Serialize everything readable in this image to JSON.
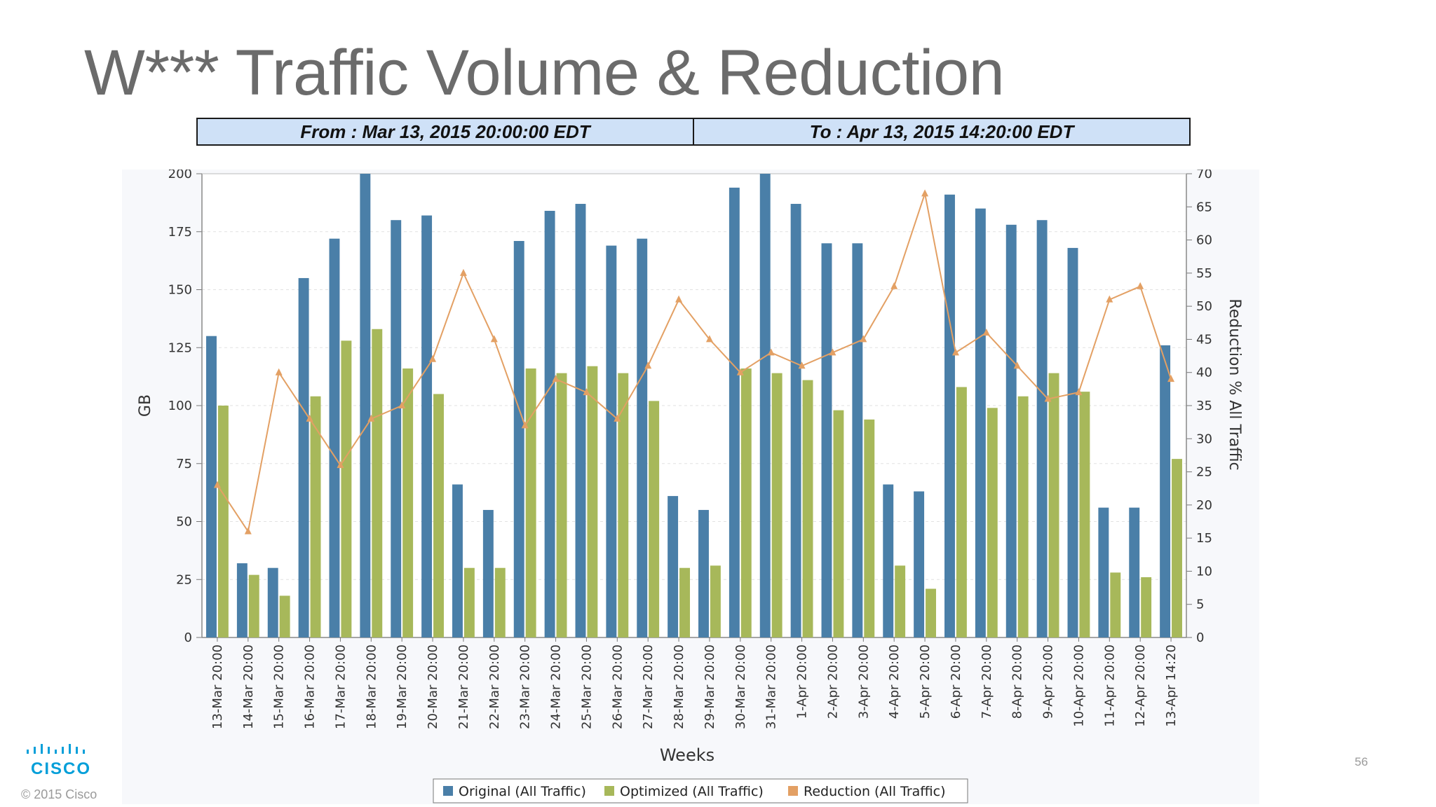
{
  "slide": {
    "title": "W*** Traffic Volume & Reduction",
    "from_label": "From  :  Mar 13, 2015 20:00:00 EDT",
    "to_label": "To  :  Apr 13, 2015 14:20:00 EDT",
    "copyright": "© 2015  Cisco",
    "page_number": "56",
    "logo_text": "CISCO"
  },
  "chart_data": {
    "type": "bar",
    "title": "",
    "xlabel": "Weeks",
    "ylabel": "GB",
    "y2label": "Reduction % All Traffic",
    "ylim": [
      0,
      200
    ],
    "y2lim": [
      0,
      70
    ],
    "yticks": [
      0,
      25,
      50,
      75,
      100,
      125,
      150,
      175,
      200
    ],
    "y2ticks": [
      0,
      5,
      10,
      15,
      20,
      25,
      30,
      35,
      40,
      45,
      50,
      55,
      60,
      65,
      70
    ],
    "grid": true,
    "legend_position": "bottom",
    "categories": [
      "13-Mar 20:00",
      "14-Mar 20:00",
      "15-Mar 20:00",
      "16-Mar 20:00",
      "17-Mar 20:00",
      "18-Mar 20:00",
      "19-Mar 20:00",
      "20-Mar 20:00",
      "21-Mar 20:00",
      "22-Mar 20:00",
      "23-Mar 20:00",
      "24-Mar 20:00",
      "25-Mar 20:00",
      "26-Mar 20:00",
      "27-Mar 20:00",
      "28-Mar 20:00",
      "29-Mar 20:00",
      "30-Mar 20:00",
      "31-Mar 20:00",
      "1-Apr 20:00",
      "2-Apr 20:00",
      "3-Apr 20:00",
      "4-Apr 20:00",
      "5-Apr 20:00",
      "6-Apr 20:00",
      "7-Apr 20:00",
      "8-Apr 20:00",
      "9-Apr 20:00",
      "10-Apr 20:00",
      "11-Apr 20:00",
      "12-Apr 20:00",
      "13-Apr 14:20"
    ],
    "series": [
      {
        "name": "Original (All Traffic)",
        "type": "bar",
        "axis": "left",
        "color": "#4a7fa8",
        "values": [
          130,
          32,
          30,
          155,
          172,
          200,
          180,
          182,
          66,
          55,
          171,
          184,
          187,
          169,
          172,
          61,
          55,
          194,
          200,
          187,
          170,
          170,
          66,
          63,
          191,
          185,
          178,
          180,
          168,
          56,
          56,
          126
        ]
      },
      {
        "name": "Optimized (All Traffic)",
        "type": "bar",
        "axis": "left",
        "color": "#a7b85a",
        "values": [
          100,
          27,
          18,
          104,
          128,
          133,
          116,
          105,
          30,
          30,
          116,
          114,
          117,
          114,
          102,
          30,
          31,
          116,
          114,
          111,
          98,
          94,
          31,
          21,
          108,
          99,
          104,
          114,
          106,
          28,
          26,
          77
        ]
      },
      {
        "name": "Reduction (All Traffic)",
        "type": "line",
        "axis": "right",
        "color": "#e3a064",
        "values": [
          23,
          16,
          40,
          33,
          26,
          33,
          35,
          42,
          55,
          45,
          32,
          39,
          37,
          33,
          41,
          51,
          45,
          40,
          43,
          41,
          43,
          45,
          53,
          67,
          43,
          46,
          41,
          36,
          37,
          51,
          53,
          39
        ]
      }
    ]
  }
}
